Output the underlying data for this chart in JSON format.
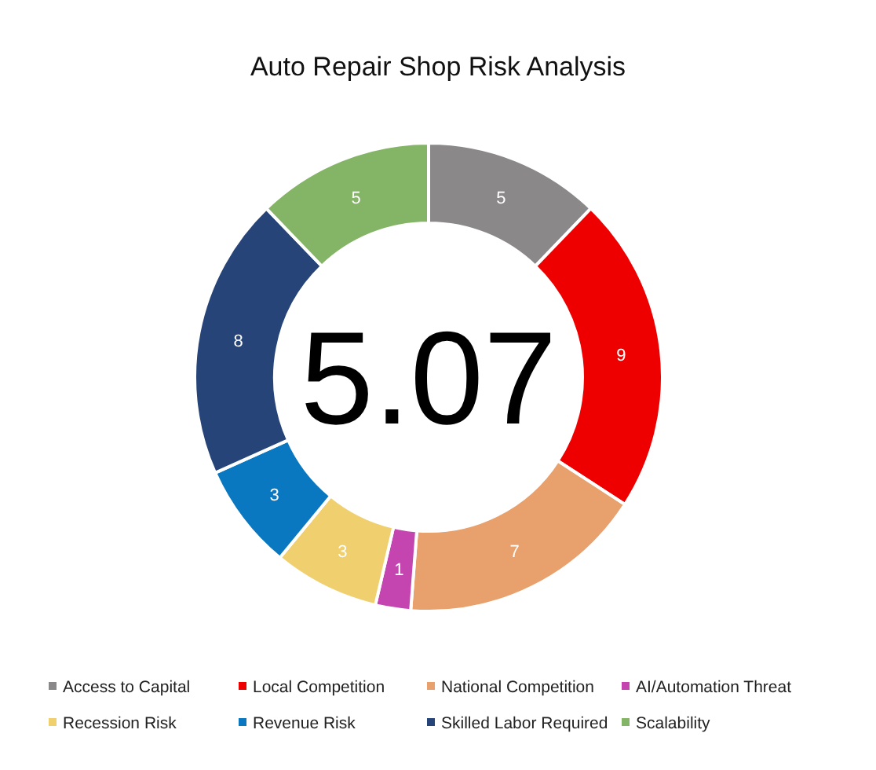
{
  "chart_data": {
    "type": "donut",
    "title": "Auto Repair Shop Risk Analysis",
    "categories": [
      "Access to Capital",
      "Local Competition",
      "National Competition",
      "AI/Automation Threat",
      "Recession Risk",
      "Revenue Risk",
      "Skilled Labor Required",
      "Scalability"
    ],
    "values": [
      5,
      9,
      7,
      1,
      3,
      3,
      8,
      5
    ],
    "colors": [
      "#8a8888",
      "#ee0000",
      "#e8a06c",
      "#c445b0",
      "#efcf6e",
      "#0a78c0",
      "#264478",
      "#84b466"
    ],
    "data_labels": true,
    "legend": "bottom",
    "annotations": [
      "5.07"
    ]
  }
}
